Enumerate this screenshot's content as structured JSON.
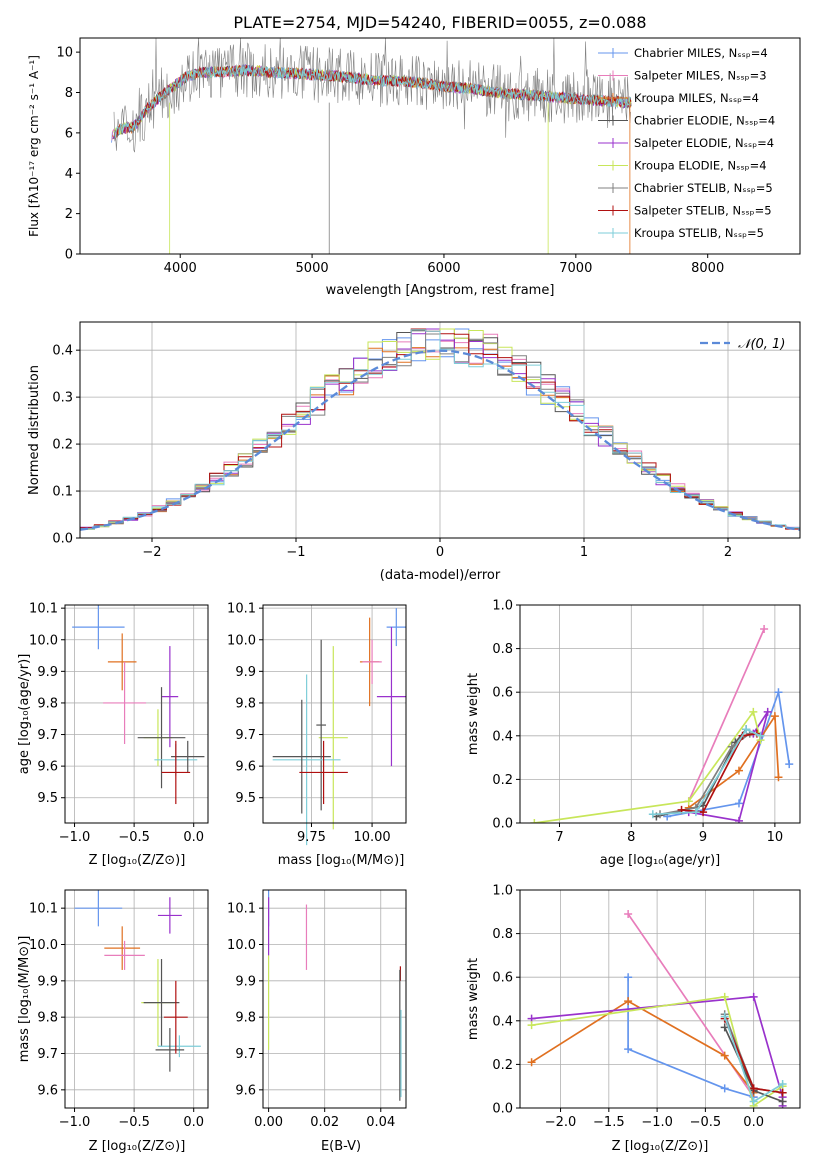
{
  "title": "PLATE=2754, MJD=54240, FIBERID=0055, z=0.088",
  "colors": {
    "cornflower": "#6495ed",
    "orange": "#e07020",
    "pink": "#e87dbb",
    "darkgray": "#555555",
    "purple": "#9932cc",
    "yellowgreen": "#c8e65a",
    "gray": "#808080",
    "red": "#b01010",
    "skyblue": "#7ecdd8",
    "normal": "#5b8ad8",
    "grid": "#b0b0b0"
  },
  "panels": {
    "spectrum": {
      "ylabel": "Flux [fλ10⁻¹⁷ erg cm⁻² s⁻¹ A⁻¹]",
      "xlabel": "wavelength [Angstrom, rest frame]"
    },
    "residuals": {
      "ylabel": "Normed distribution",
      "xlabel": "(data-model)/error"
    },
    "age_z": {
      "ylabel": "age  [log₁₀(age/yr)]",
      "xlabel": "Z [log₁₀(Z/Z⊙)]"
    },
    "age_mass": {
      "xlabel": "mass [log₁₀(M/M⊙)]"
    },
    "mw_age": {
      "ylabel": "mass weight",
      "xlabel": "age  [log₁₀(age/yr)]"
    },
    "mass_z": {
      "ylabel": "mass [log₁₀(M/M⊙)]",
      "xlabel": "Z [log₁₀(Z/Z⊙)]"
    },
    "mass_ebv": {
      "xlabel": "E(B-V)"
    },
    "mw_z": {
      "ylabel": "mass weight",
      "xlabel": "Z [log₁₀(Z/Z⊙)]"
    }
  },
  "chart_data": [
    {
      "type": "line",
      "title": "PLATE=2754, MJD=54240, FIBERID=0055, z=0.088",
      "xlabel": "wavelength [Angstrom, rest frame]",
      "ylabel": "Flux [fλ10⁻¹⁷ erg cm⁻² s⁻¹ A⁻¹]",
      "xlim": [
        3240,
        8700
      ],
      "ylim": [
        0,
        10.7
      ],
      "xticks": [
        4000,
        5000,
        6000,
        7000,
        8000
      ],
      "yticks": [
        0,
        2,
        4,
        6,
        8,
        10
      ],
      "legend_position": "right",
      "spectrum_shape": {
        "x": [
          3480,
          3550,
          3650,
          3750,
          3850,
          3950,
          4050,
          4150,
          4300,
          4500,
          4700,
          5000,
          5200,
          5500,
          5800,
          6000,
          6200,
          6400,
          6600,
          6800,
          7000,
          7200,
          7400
        ],
        "y": [
          5.8,
          6.2,
          6.3,
          7.2,
          7.8,
          8.3,
          8.8,
          9.0,
          9.0,
          9.1,
          9.0,
          8.9,
          8.8,
          8.6,
          8.5,
          8.3,
          8.2,
          8.0,
          7.9,
          7.8,
          7.7,
          7.6,
          7.5
        ]
      },
      "series": [
        {
          "name": "Chabrier MILES, Nₛₛₚ=4",
          "color": "#6495ed"
        },
        {
          "name": "Salpeter MILES, Nₛₛₚ=3",
          "color": "#e87dbb"
        },
        {
          "name": "Kroupa MILES, Nₛₛₚ=4",
          "color": "#e07020"
        },
        {
          "name": "Chabrier ELODIE, Nₛₛₚ=4",
          "color": "#555555"
        },
        {
          "name": "Salpeter ELODIE, Nₛₛₚ=4",
          "color": "#9932cc"
        },
        {
          "name": "Kroupa ELODIE, Nₛₛₚ=4",
          "color": "#c8e65a"
        },
        {
          "name": "Chabrier STELIB, Nₛₛₚ=5",
          "color": "#808080"
        },
        {
          "name": "Salpeter STELIB, Nₛₛₚ=5",
          "color": "#b01010"
        },
        {
          "name": "Kroupa STELIB, Nₛₛₚ=5",
          "color": "#7ecdd8"
        }
      ]
    },
    {
      "type": "area",
      "xlabel": "(data-model)/error",
      "ylabel": "Normed distribution",
      "xlim": [
        -2.5,
        2.5
      ],
      "ylim": [
        0,
        0.46
      ],
      "xticks": [
        -2,
        -1,
        0,
        1,
        2
      ],
      "yticks": [
        0.0,
        0.1,
        0.2,
        0.3,
        0.4
      ],
      "legend": "𝒩(0, 1)",
      "legend_position": "top-right",
      "bin_width": 0.1,
      "histogram_shape": "histograms of the nine fits around N(0,1), peak about 0.40 to 0.44"
    },
    {
      "type": "scatter",
      "xlabel": "Z [log₁₀(Z/Z⊙)]",
      "ylabel": "age  [log₁₀(age/yr)]",
      "xlim": [
        -1.08,
        0.12
      ],
      "ylim": [
        9.42,
        10.11
      ],
      "xticks": [
        -1.0,
        -0.5,
        0.0
      ],
      "yticks": [
        9.5,
        9.6,
        9.7,
        9.8,
        9.9,
        10.0,
        10.1
      ],
      "points": [
        {
          "color": "#6495ed",
          "x": -0.8,
          "y": 10.04,
          "xerr": 0.22,
          "yerr": 0.07
        },
        {
          "color": "#e07020",
          "x": -0.6,
          "y": 9.93,
          "xerr": 0.12,
          "yerr": 0.09
        },
        {
          "color": "#e87dbb",
          "x": -0.58,
          "y": 9.8,
          "xerr": 0.18,
          "yerr": 0.13
        },
        {
          "color": "#9932cc",
          "x": -0.2,
          "y": 9.82,
          "xerr": 0.07,
          "yerr": 0.16
        },
        {
          "color": "#c8e65a",
          "x": -0.3,
          "y": 9.69,
          "xerr": 0.12,
          "yerr": 0.09
        },
        {
          "color": "#555555",
          "x": -0.27,
          "y": 9.69,
          "xerr": 0.2,
          "yerr": 0.16
        },
        {
          "color": "#7ecdd8",
          "x": -0.15,
          "y": 9.62,
          "xerr": 0.18,
          "yerr": 0.05
        },
        {
          "color": "#555555",
          "x": -0.05,
          "y": 9.63,
          "xerr": 0.14,
          "yerr": 0.05
        },
        {
          "color": "#b01010",
          "x": -0.15,
          "y": 9.58,
          "xerr": 0.12,
          "yerr": 0.1
        }
      ]
    },
    {
      "type": "scatter",
      "xlabel": "mass [log₁₀(M/M⊙)]",
      "ylabel": "",
      "xlim": [
        9.55,
        10.14
      ],
      "ylim": [
        9.42,
        10.11
      ],
      "xticks": [
        9.75,
        10.0
      ],
      "yticks": [
        9.5,
        9.6,
        9.7,
        9.8,
        9.9,
        10.0,
        10.1
      ],
      "points": [
        {
          "color": "#6495ed",
          "x": 10.1,
          "y": 10.04,
          "xerr": 0.04,
          "yerr": 0.06
        },
        {
          "color": "#e07020",
          "x": 9.99,
          "y": 9.93,
          "xerr": 0.04,
          "yerr": 0.14
        },
        {
          "color": "#e87dbb",
          "x": 10.0,
          "y": 9.93,
          "xerr": 0.04,
          "yerr": 0.07
        },
        {
          "color": "#9932cc",
          "x": 10.08,
          "y": 9.82,
          "xerr": 0.06,
          "yerr": 0.22
        },
        {
          "color": "#c8e65a",
          "x": 9.84,
          "y": 9.69,
          "xerr": 0.06,
          "yerr": 0.29
        },
        {
          "color": "#555555",
          "x": 9.79,
          "y": 9.73,
          "xerr": 0.02,
          "yerr": 0.27
        },
        {
          "color": "#7ecdd8",
          "x": 9.73,
          "y": 9.62,
          "xerr": 0.14,
          "yerr": 0.27
        },
        {
          "color": "#555555",
          "x": 9.71,
          "y": 9.63,
          "xerr": 0.12,
          "yerr": 0.18
        },
        {
          "color": "#b01010",
          "x": 9.8,
          "y": 9.58,
          "xerr": 0.1,
          "yerr": 0.1
        }
      ]
    },
    {
      "type": "line",
      "xlabel": "age  [log₁₀(age/yr)]",
      "ylabel": "mass weight",
      "xlim": [
        6.45,
        10.35
      ],
      "ylim": [
        0,
        1.0
      ],
      "xticks": [
        7,
        8,
        9,
        10
      ],
      "yticks": [
        0.0,
        0.2,
        0.4,
        0.6,
        0.8,
        1.0
      ],
      "series": [
        {
          "color": "#e87dbb",
          "x": [
            8.8,
            9.85
          ],
          "y": [
            0.1,
            0.89
          ]
        },
        {
          "color": "#6495ed",
          "x": [
            8.5,
            9.5,
            10.05,
            10.2
          ],
          "y": [
            0.03,
            0.09,
            0.6,
            0.27
          ]
        },
        {
          "color": "#e07020",
          "x": [
            8.8,
            9.5,
            10.0,
            10.05
          ],
          "y": [
            0.07,
            0.24,
            0.49,
            0.21
          ]
        },
        {
          "color": "#9932cc",
          "x": [
            8.8,
            9.5,
            9.9,
            9.7
          ],
          "y": [
            0.05,
            0.01,
            0.51,
            0.41
          ]
        },
        {
          "color": "#c8e65a",
          "x": [
            6.65,
            8.8,
            9.7,
            9.8
          ],
          "y": [
            0.0,
            0.1,
            0.51,
            0.38
          ]
        },
        {
          "color": "#555555",
          "x": [
            8.35,
            9.0,
            9.45,
            9.6
          ],
          "y": [
            0.03,
            0.08,
            0.37,
            0.43
          ]
        },
        {
          "color": "#808080",
          "x": [
            8.4,
            8.9,
            9.4,
            9.65
          ],
          "y": [
            0.04,
            0.07,
            0.35,
            0.41
          ]
        },
        {
          "color": "#b01010",
          "x": [
            8.7,
            9.0,
            9.55,
            9.75
          ],
          "y": [
            0.06,
            0.05,
            0.4,
            0.41
          ]
        },
        {
          "color": "#7ecdd8",
          "x": [
            8.3,
            8.9,
            9.6,
            9.8
          ],
          "y": [
            0.04,
            0.05,
            0.43,
            0.4
          ]
        }
      ]
    },
    {
      "type": "scatter",
      "xlabel": "Z [log₁₀(Z/Z⊙)]",
      "ylabel": "mass [log₁₀(M/M⊙)]",
      "xlim": [
        -1.08,
        0.12
      ],
      "ylim": [
        9.55,
        10.15
      ],
      "xticks": [
        -1.0,
        -0.5,
        0.0
      ],
      "yticks": [
        9.6,
        9.7,
        9.8,
        9.9,
        10.0,
        10.1
      ],
      "points": [
        {
          "color": "#6495ed",
          "x": -0.8,
          "y": 10.1,
          "xerr": 0.2,
          "yerr": 0.05
        },
        {
          "color": "#e07020",
          "x": -0.6,
          "y": 9.99,
          "xerr": 0.15,
          "yerr": 0.06
        },
        {
          "color": "#e87dbb",
          "x": -0.58,
          "y": 9.97,
          "xerr": 0.17,
          "yerr": 0.04
        },
        {
          "color": "#9932cc",
          "x": -0.2,
          "y": 10.08,
          "xerr": 0.1,
          "yerr": 0.05
        },
        {
          "color": "#c8e65a",
          "x": -0.3,
          "y": 9.84,
          "xerr": 0.14,
          "yerr": 0.12
        },
        {
          "color": "#555555",
          "x": -0.27,
          "y": 9.84,
          "xerr": 0.15,
          "yerr": 0.12
        },
        {
          "color": "#7ecdd8",
          "x": -0.12,
          "y": 9.72,
          "xerr": 0.18,
          "yerr": 0.03
        },
        {
          "color": "#555555",
          "x": -0.2,
          "y": 9.71,
          "xerr": 0.12,
          "yerr": 0.06
        },
        {
          "color": "#b01010",
          "x": -0.15,
          "y": 9.8,
          "xerr": 0.1,
          "yerr": 0.1
        }
      ]
    },
    {
      "type": "scatter",
      "xlabel": "E(B-V)",
      "ylabel": "",
      "xlim": [
        -0.002,
        0.049
      ],
      "ylim": [
        9.55,
        10.15
      ],
      "xticks": [
        0.0,
        0.02,
        0.04
      ],
      "yticks": [
        9.6,
        9.7,
        9.8,
        9.9,
        10.0,
        10.1
      ],
      "points": [
        {
          "color": "#6495ed",
          "x": 0.0,
          "y": 10.1,
          "yerr": 0.05
        },
        {
          "color": "#9932cc",
          "x": 0.0,
          "y": 10.05,
          "yerr": 0.08
        },
        {
          "color": "#c8e65a",
          "x": 0.0,
          "y": 9.84,
          "yerr": 0.13
        },
        {
          "color": "#e87dbb",
          "x": 0.0135,
          "y": 10.02,
          "yerr": 0.09
        },
        {
          "color": "#b01010",
          "x": 0.047,
          "y": 9.92,
          "yerr": 0.02
        },
        {
          "color": "#555555",
          "x": 0.0468,
          "y": 9.75,
          "yerr": 0.18
        },
        {
          "color": "#7ecdd8",
          "x": 0.0472,
          "y": 9.7,
          "yerr": 0.12
        }
      ]
    },
    {
      "type": "line",
      "xlabel": "Z [log₁₀(Z/Z⊙)]",
      "ylabel": "mass weight",
      "xlim": [
        -2.42,
        0.48
      ],
      "ylim": [
        0,
        1.0
      ],
      "xticks": [
        -2.0,
        -1.5,
        -1.0,
        -0.5,
        0.0
      ],
      "yticks": [
        0.0,
        0.2,
        0.4,
        0.6,
        0.8,
        1.0
      ],
      "series": [
        {
          "color": "#e87dbb",
          "x": [
            -1.3,
            0.0
          ],
          "y": [
            0.89,
            0.05
          ]
        },
        {
          "color": "#6495ed",
          "x": [
            -1.3,
            -1.3,
            -0.3,
            0.0
          ],
          "y": [
            0.6,
            0.27,
            0.09,
            0.05
          ]
        },
        {
          "color": "#e07020",
          "x": [
            -2.3,
            -1.3,
            -0.3,
            0.0
          ],
          "y": [
            0.21,
            0.49,
            0.24,
            0.07
          ]
        },
        {
          "color": "#9932cc",
          "x": [
            -2.3,
            0.0,
            0.3,
            0.3
          ],
          "y": [
            0.41,
            0.51,
            0.05,
            0.01
          ]
        },
        {
          "color": "#c8e65a",
          "x": [
            -2.3,
            -0.3,
            0.0,
            0.3
          ],
          "y": [
            0.38,
            0.51,
            0.01,
            0.1
          ]
        },
        {
          "color": "#555555",
          "x": [
            -0.3,
            0.0,
            0.3
          ],
          "y": [
            0.37,
            0.08,
            0.03
          ]
        },
        {
          "color": "#808080",
          "x": [
            -0.3,
            0.0,
            0.3
          ],
          "y": [
            0.43,
            0.09,
            0.07
          ]
        },
        {
          "color": "#b01010",
          "x": [
            -0.3,
            0.0,
            0.3
          ],
          "y": [
            0.41,
            0.09,
            0.07
          ]
        },
        {
          "color": "#7ecdd8",
          "x": [
            -0.3,
            0.0,
            0.3
          ],
          "y": [
            0.42,
            0.03,
            0.11
          ]
        }
      ]
    }
  ]
}
